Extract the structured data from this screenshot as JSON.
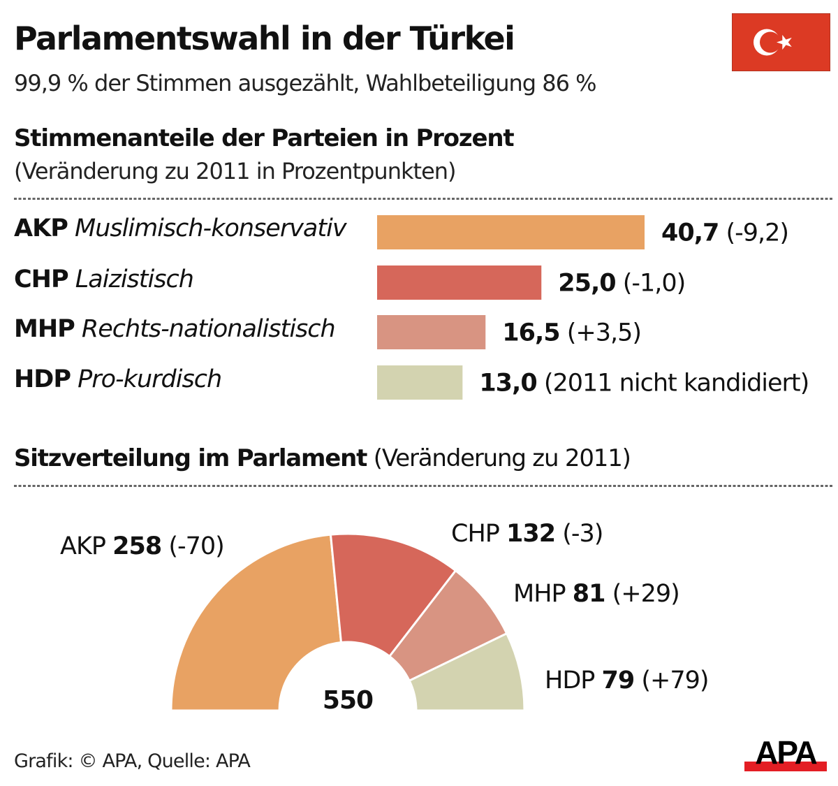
{
  "header": {
    "title": "Parlamentswahl in der Türkei",
    "subtitle": "99,9 % der Stimmen ausgezählt, Wahlbeteiligung 86 %",
    "flag_icon": "turkey-flag-icon",
    "flag_color": "#DC3A24"
  },
  "votes_section": {
    "title": "Stimmenanteile der Parteien in Prozent",
    "subtitle": "(Veränderung zu 2011 in Prozentpunkten)"
  },
  "seats_section": {
    "title_bold": "Sitzverteilung im Parlament",
    "title_rest": " (Veränderung zu 2011)"
  },
  "parties": [
    {
      "abbr": "AKP",
      "desc": "Muslimisch-konservativ",
      "color": "#E8A263"
    },
    {
      "abbr": "CHP",
      "desc": "Laizistisch",
      "color": "#D6675A"
    },
    {
      "abbr": "MHP",
      "desc": "Rechts-nationalistisch",
      "color": "#D89482"
    },
    {
      "abbr": "HDP",
      "desc": "Pro-kurdisch",
      "color": "#D3D3B0"
    }
  ],
  "chart_data": [
    {
      "type": "bar",
      "orientation": "horizontal",
      "title": "Stimmenanteile der Parteien in Prozent",
      "subtitle": "(Veränderung zu 2011 in Prozentpunkten)",
      "categories": [
        "AKP",
        "CHP",
        "MHP",
        "HDP"
      ],
      "values": [
        40.7,
        25.0,
        16.5,
        13.0
      ],
      "value_labels": [
        "40,7",
        "25,0",
        "16,5",
        "13,0"
      ],
      "change_labels": [
        "(-9,2)",
        "(-1,0)",
        "(+3,5)",
        "(2011 nicht kandidiert)"
      ],
      "changes": [
        -9.2,
        -1.0,
        3.5,
        null
      ],
      "unit": "%",
      "xlim": [
        0,
        40.7
      ],
      "grid": false
    },
    {
      "type": "pie",
      "variant": "half-donut",
      "title": "Sitzverteilung im Parlament (Veränderung zu 2011)",
      "categories": [
        "AKP",
        "CHP",
        "MHP",
        "HDP"
      ],
      "values": [
        258,
        132,
        81,
        79
      ],
      "changes": [
        -70,
        -3,
        29,
        79
      ],
      "change_labels": [
        "(-70)",
        "(-3)",
        "(+29)",
        "(+79)"
      ],
      "total": 550,
      "total_label": "550"
    }
  ],
  "footer": {
    "credit": "Grafik: © APA, Quelle: APA",
    "logo_text": "APA",
    "logo_icon": "apa-logo-icon",
    "logo_bar_color": "#E31E24"
  }
}
